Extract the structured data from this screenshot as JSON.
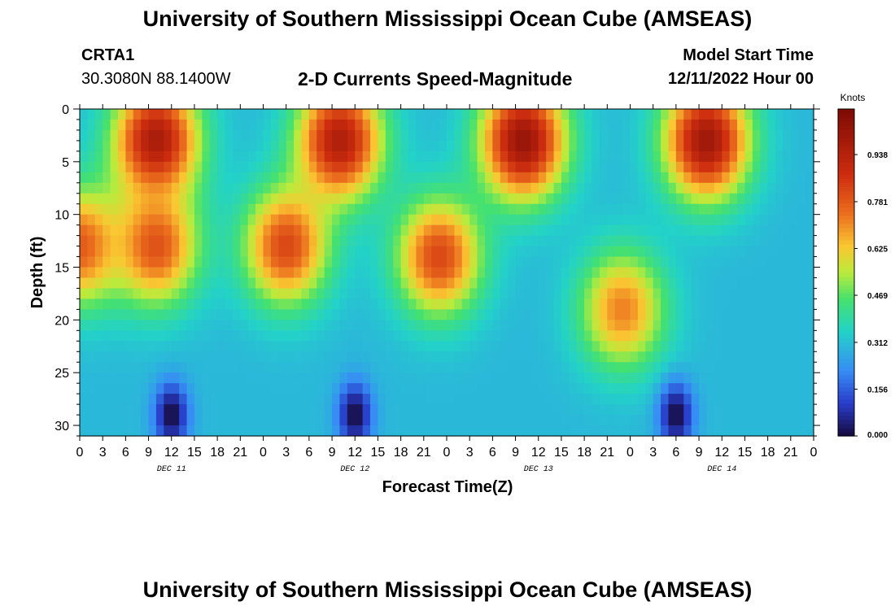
{
  "header": {
    "title": "University of Southern Mississippi Ocean Cube (AMSEAS)",
    "station": "CRTA1",
    "coords": "30.3080N  88.1400W",
    "subtitle": "2-D Currents Speed-Magnitude",
    "model_start_label": "Model Start Time",
    "model_start_value": "12/11/2022 Hour 00"
  },
  "footer_title": "University of Southern Mississippi Ocean Cube (AMSEAS)",
  "chart_data": {
    "type": "heatmap",
    "xlabel": "Forecast Time(Z)",
    "ylabel": "Depth (ft)",
    "colorbar_label": "Knots",
    "x_range_hours": [
      0,
      96
    ],
    "y_range_ft": [
      0,
      31
    ],
    "x_ticks": [
      "0",
      "3",
      "6",
      "9",
      "12",
      "15",
      "18",
      "21",
      "0",
      "3",
      "6",
      "9",
      "12",
      "15",
      "18",
      "21",
      "0",
      "3",
      "6",
      "9",
      "12",
      "15",
      "18",
      "21",
      "0",
      "3",
      "6",
      "9",
      "12",
      "15",
      "18",
      "21",
      "0"
    ],
    "day_labels": [
      "DEC 11",
      "DEC 12",
      "DEC 13",
      "DEC 14"
    ],
    "y_ticks": [
      0,
      5,
      10,
      15,
      20,
      25,
      30
    ],
    "colorbar_ticks": [
      "0.000",
      "0.156",
      "0.312",
      "0.469",
      "0.625",
      "0.781",
      "0.938"
    ],
    "value_range_knots": [
      0,
      1.09
    ],
    "features": [
      {
        "hour": 0,
        "depth_ft": 13,
        "speed": 0.78
      },
      {
        "hour": 10,
        "depth_ft": 3,
        "speed": 0.98
      },
      {
        "hour": 10,
        "depth_ft": 13,
        "speed": 0.8
      },
      {
        "hour": 27,
        "depth_ft": 13,
        "speed": 0.82
      },
      {
        "hour": 34,
        "depth_ft": 3,
        "speed": 0.96
      },
      {
        "hour": 47,
        "depth_ft": 14,
        "speed": 0.82
      },
      {
        "hour": 58,
        "depth_ft": 3,
        "speed": 1.02
      },
      {
        "hour": 71,
        "depth_ft": 19,
        "speed": 0.72
      },
      {
        "hour": 82,
        "depth_ft": 3,
        "speed": 1.0
      },
      {
        "hour": 12,
        "depth_ft": 29,
        "speed": 0.0
      },
      {
        "hour": 36,
        "depth_ft": 29,
        "speed": 0.0
      },
      {
        "hour": 78,
        "depth_ft": 29,
        "speed": 0.0
      }
    ]
  }
}
